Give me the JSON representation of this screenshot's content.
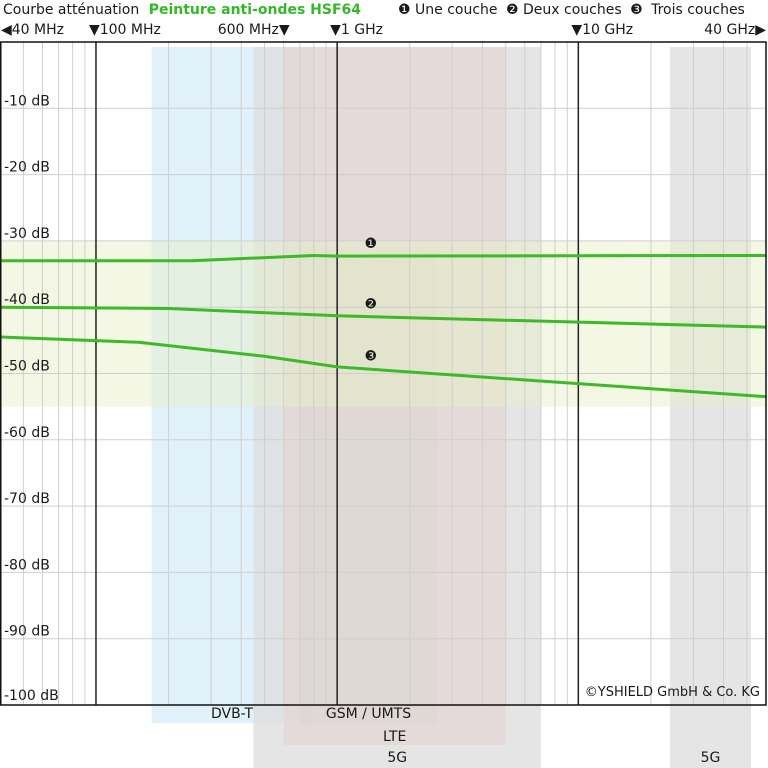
{
  "header": {
    "title": "Courbe atténuation",
    "product": "Peinture anti-ondes HSF64",
    "product_color": "#33b827",
    "legend": [
      {
        "marker": "❶",
        "label": "Une couche"
      },
      {
        "marker": "❷",
        "label": "Deux couches"
      },
      {
        "marker": "❸",
        "label": "Trois couches"
      }
    ]
  },
  "copyright": "©YSHIELD GmbH & Co. KG",
  "chart_data": {
    "type": "line",
    "x_scale": "log",
    "x_unit": "Hz",
    "x_range": [
      40000000,
      60000000000
    ],
    "y_range": [
      -100,
      0
    ],
    "y_ticks": [
      {
        "value": -10,
        "label": "-10 dB"
      },
      {
        "value": -20,
        "label": "-20 dB"
      },
      {
        "value": -30,
        "label": "-30 dB"
      },
      {
        "value": -40,
        "label": "-40 dB"
      },
      {
        "value": -50,
        "label": "-50 dB"
      },
      {
        "value": -60,
        "label": "-60 dB"
      },
      {
        "value": -70,
        "label": "-70 dB"
      },
      {
        "value": -80,
        "label": "-80 dB"
      },
      {
        "value": -90,
        "label": "-90 dB"
      },
      {
        "value": -100,
        "label": "-100 dB"
      }
    ],
    "x_ticks": [
      {
        "value": 40000000,
        "label": "40 MHz",
        "marker": "left"
      },
      {
        "value": 100000000,
        "label": "100 MHz",
        "marker": "down"
      },
      {
        "value": 600000000,
        "label": "600 MHz",
        "marker": "down-after"
      },
      {
        "value": 1000000000,
        "label": "1 GHz",
        "marker": "down"
      },
      {
        "value": 10000000000,
        "label": "10 GHz",
        "marker": "down"
      },
      {
        "value": 40000000000,
        "label": "40 GHz",
        "marker": "right"
      }
    ],
    "series": [
      {
        "marker": "❶",
        "points": [
          [
            40000000,
            -33
          ],
          [
            250000000,
            -33
          ],
          [
            800000000,
            -32.2
          ],
          [
            1000000000,
            -32.3
          ],
          [
            60000000000,
            -32.2
          ]
        ]
      },
      {
        "marker": "❷",
        "points": [
          [
            40000000,
            -40
          ],
          [
            200000000,
            -40.2
          ],
          [
            1000000000,
            -41.3
          ],
          [
            60000000000,
            -43
          ]
        ]
      },
      {
        "marker": "❸",
        "points": [
          [
            40000000,
            -44.5
          ],
          [
            150000000,
            -45.3
          ],
          [
            500000000,
            -47.4
          ],
          [
            1000000000,
            -49
          ],
          [
            60000000000,
            -53.5
          ]
        ]
      }
    ],
    "series_color": "#3cba28",
    "bands": [
      {
        "label": "DVB-T",
        "from_hz": 170000000,
        "to_hz": 790000000,
        "color": "#d7ecf8"
      },
      {
        "label": "GSM / UMTS",
        "from_hz": 700000000,
        "to_hz": 2600000000,
        "color": "#9fb58a"
      },
      {
        "label": "LTE",
        "from_hz": 600000000,
        "to_hz": 5000000000,
        "color": "#f1c6c0"
      },
      {
        "label": "5G",
        "from_hz": 450000000,
        "to_hz": 7000000000,
        "color": "#dcdcdc"
      },
      {
        "label": "5G",
        "from_hz": 24000000000,
        "to_hz": 52000000000,
        "color": "#dcdcdc"
      }
    ],
    "highlight_range_db": [
      -55,
      -30
    ]
  }
}
